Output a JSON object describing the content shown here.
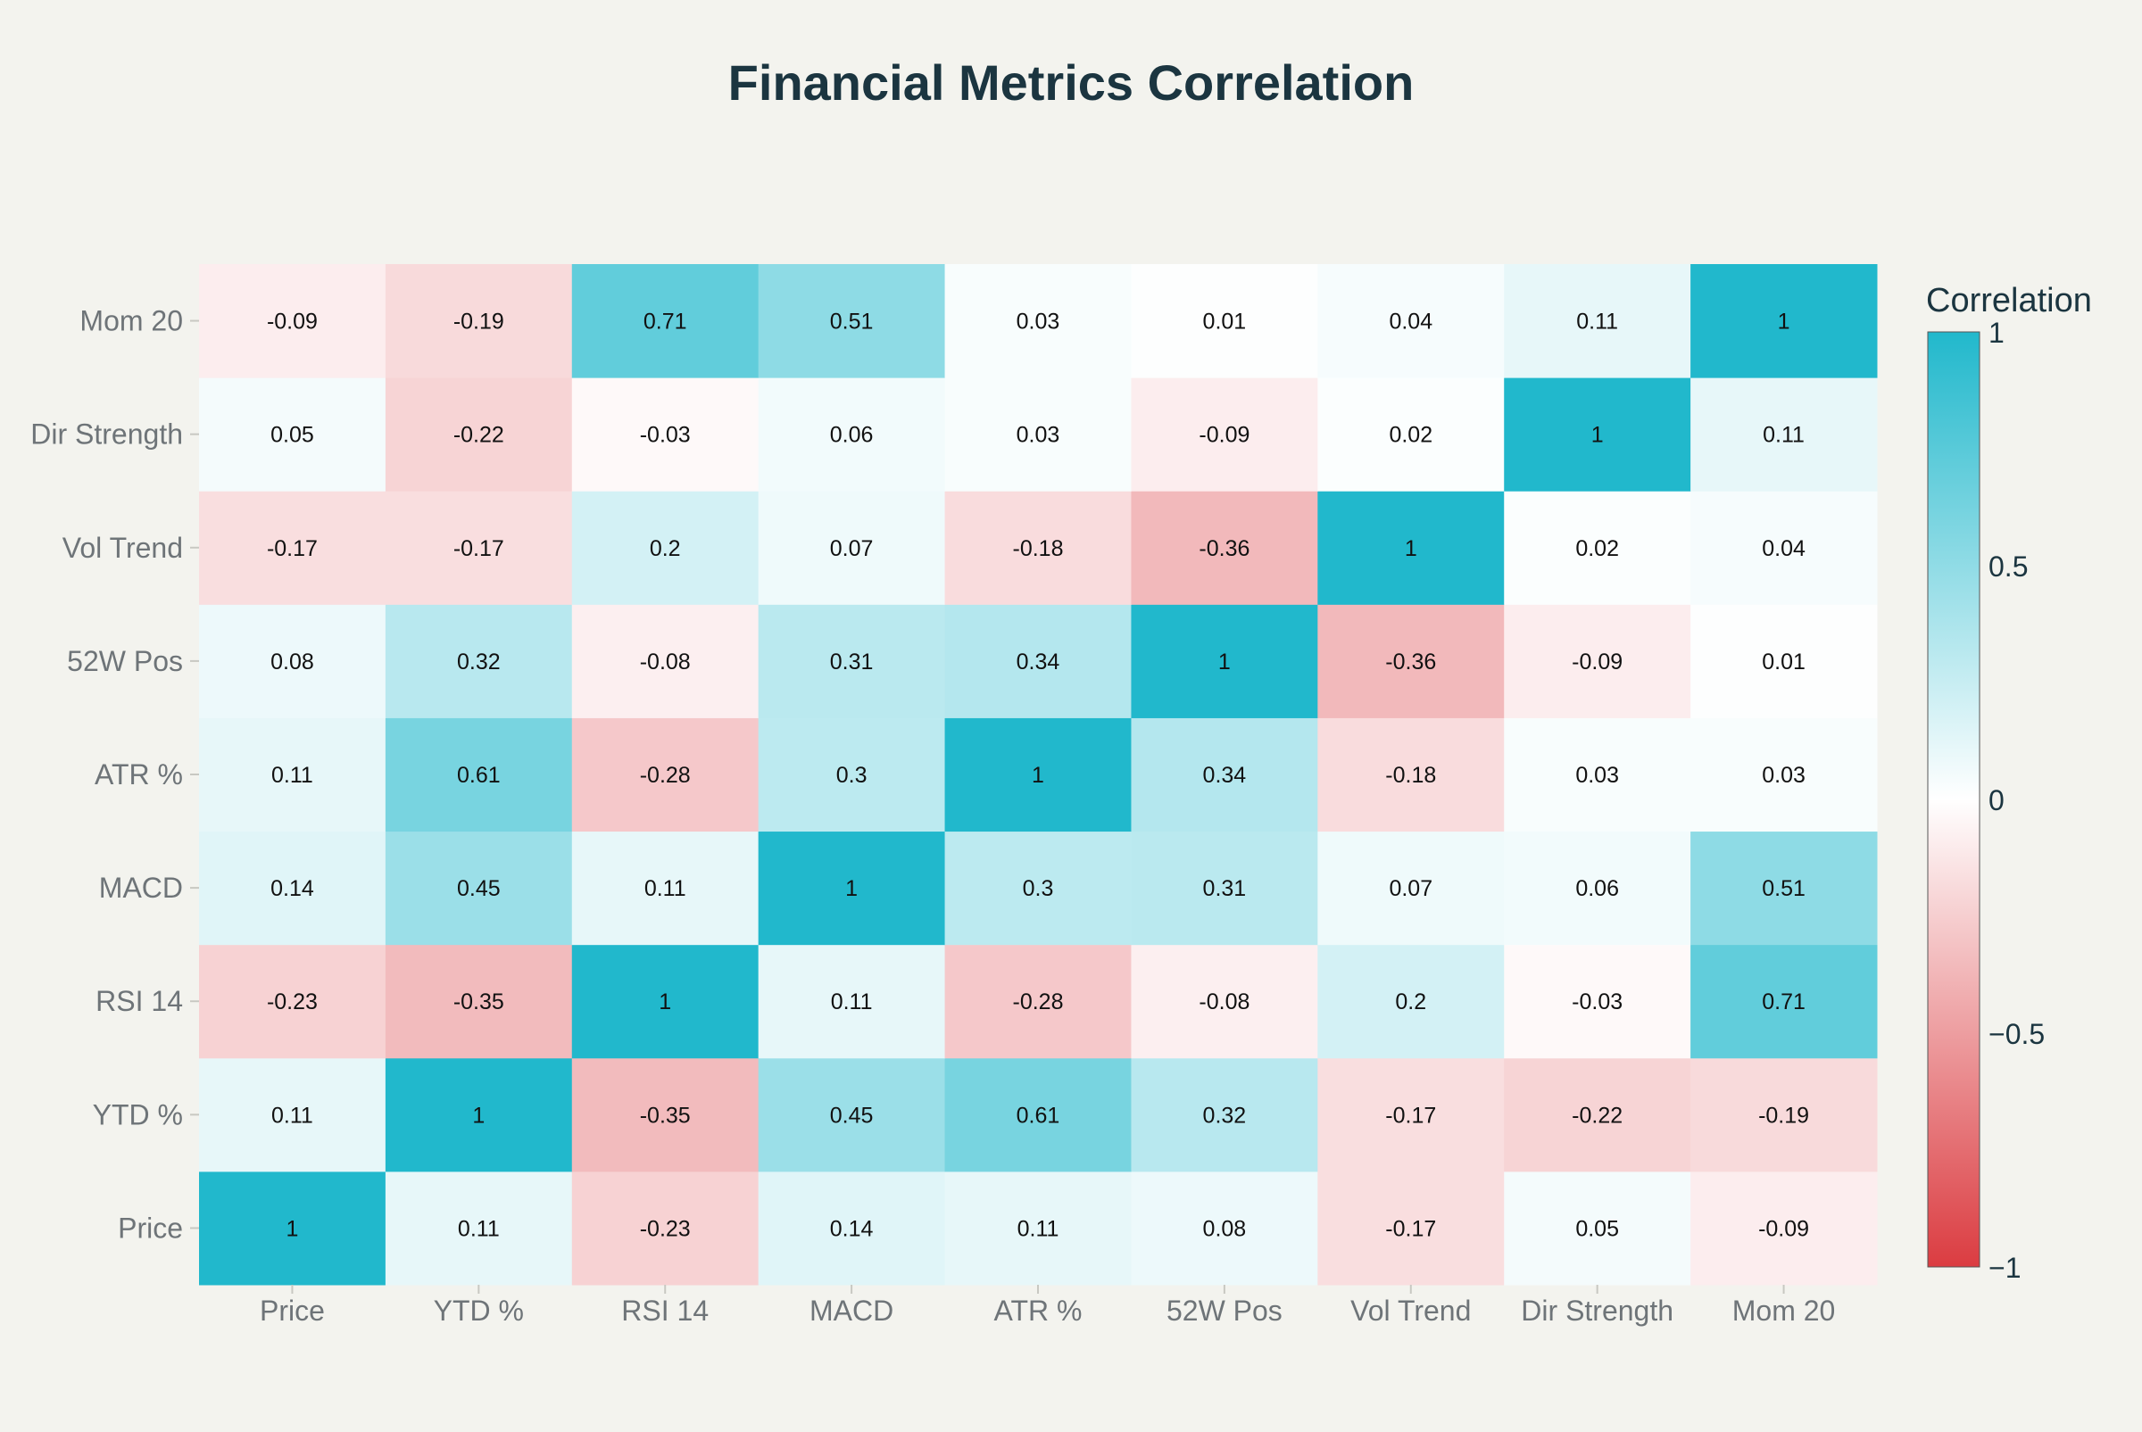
{
  "chart_data": {
    "type": "heatmap",
    "title": "Financial Metrics Correlation",
    "x_categories": [
      "Price",
      "YTD %",
      "RSI 14",
      "MACD",
      "ATR %",
      "52W Pos",
      "Vol Trend",
      "Dir Strength",
      "Mom 20"
    ],
    "y_categories": [
      "Price",
      "YTD %",
      "RSI 14",
      "MACD",
      "ATR %",
      "52W Pos",
      "Vol Trend",
      "Dir Strength",
      "Mom 20"
    ],
    "values": [
      [
        1,
        0.11,
        -0.23,
        0.14,
        0.11,
        0.08,
        -0.17,
        0.05,
        -0.09
      ],
      [
        0.11,
        1,
        -0.35,
        0.45,
        0.61,
        0.32,
        -0.17,
        -0.22,
        -0.19
      ],
      [
        -0.23,
        -0.35,
        1,
        0.11,
        -0.28,
        -0.08,
        0.2,
        -0.03,
        0.71
      ],
      [
        0.14,
        0.45,
        0.11,
        1,
        0.3,
        0.31,
        0.07,
        0.06,
        0.51
      ],
      [
        0.11,
        0.61,
        -0.28,
        0.3,
        1,
        0.34,
        -0.18,
        0.03,
        0.03
      ],
      [
        0.08,
        0.32,
        -0.08,
        0.31,
        0.34,
        1,
        -0.36,
        -0.09,
        0.01
      ],
      [
        -0.17,
        -0.17,
        0.2,
        0.07,
        -0.18,
        -0.36,
        1,
        0.02,
        0.04
      ],
      [
        0.05,
        -0.22,
        -0.03,
        0.06,
        0.03,
        -0.09,
        0.02,
        1,
        0.11
      ],
      [
        -0.09,
        -0.19,
        0.71,
        0.51,
        0.03,
        0.01,
        0.04,
        0.11,
        1
      ]
    ],
    "zrange": [
      -1,
      1
    ],
    "colorbar": {
      "title": "Correlation",
      "ticks": [
        1,
        0.5,
        0,
        -0.5,
        -1
      ],
      "tick_labels": [
        "1",
        "0.5",
        "0",
        "−0.5",
        "−1"
      ]
    },
    "colorscale": {
      "negative": "#db3c41",
      "zero": "#ffffff",
      "positive": "#21b8cc"
    },
    "colors": {
      "background": "#f3f3ee",
      "title": "#1b3540",
      "axis_label": "#6e7478",
      "cell_text": "#111111"
    }
  }
}
